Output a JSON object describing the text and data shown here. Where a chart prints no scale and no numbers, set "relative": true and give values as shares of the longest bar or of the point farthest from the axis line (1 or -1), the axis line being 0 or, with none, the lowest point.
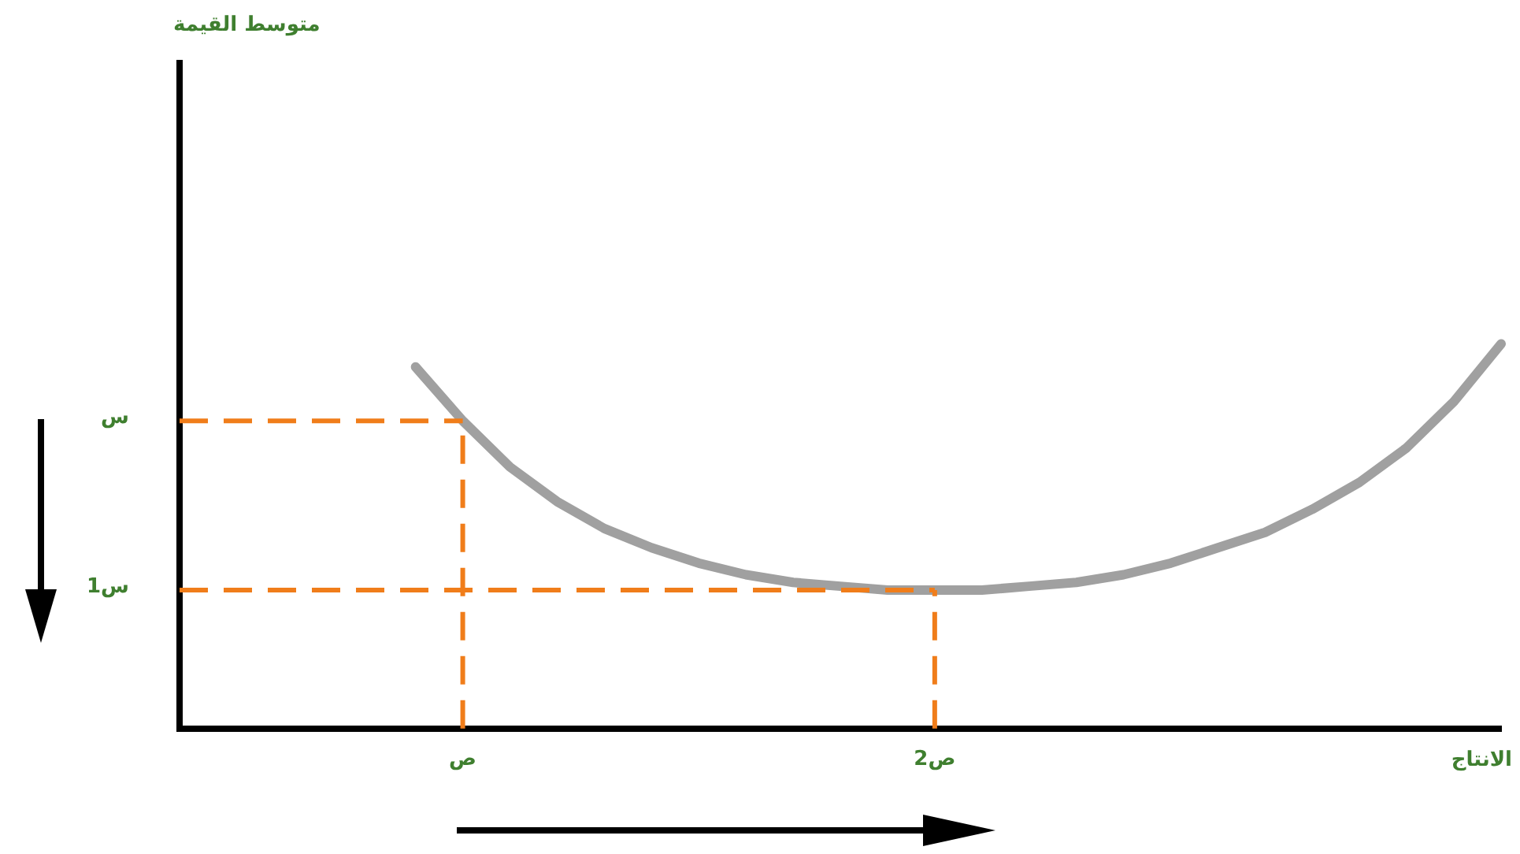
{
  "chart_data": {
    "type": "line",
    "relative": true,
    "annotations": [
      "متوسط القيمة"
    ],
    "xlabel": "الانتاج",
    "categories": [
      null,
      null,
      null,
      null,
      null,
      null,
      "ص",
      null,
      null,
      null,
      null,
      null,
      null,
      null,
      null,
      null,
      "ص2",
      null,
      null,
      null,
      null,
      null,
      null,
      null,
      null,
      null,
      null,
      null,
      null
    ],
    "series": [
      {
        "color": "#a0a0a0",
        "values": [
          null,
          null,
          null,
          null,
          null,
          0.94,
          0.8,
          0.68,
          0.59,
          0.52,
          0.47,
          0.43,
          0.4,
          0.38,
          0.37,
          0.36,
          0.36,
          0.36,
          0.37,
          0.38,
          0.4,
          0.43,
          0.47,
          0.51,
          0.57,
          0.64,
          0.73,
          0.85,
          1.0
        ]
      }
    ],
    "ref_lines": [
      {
        "axis": "y",
        "value": 0.8,
        "label": "س",
        "color": "#f07d1a",
        "line_style": "dashed"
      },
      {
        "axis": "x",
        "value": "ص",
        "color": "#f07d1a",
        "line_style": "dashed"
      },
      {
        "axis": "y",
        "value": 0.36,
        "label": "س1",
        "color": "#f07d1a",
        "line_style": "dashed"
      },
      {
        "axis": "x",
        "value": "ص2",
        "color": "#f07d1a",
        "line_style": "dashed"
      }
    ],
    "grid": false,
    "legend": false,
    "marker": "none",
    "line_style": "solid"
  }
}
